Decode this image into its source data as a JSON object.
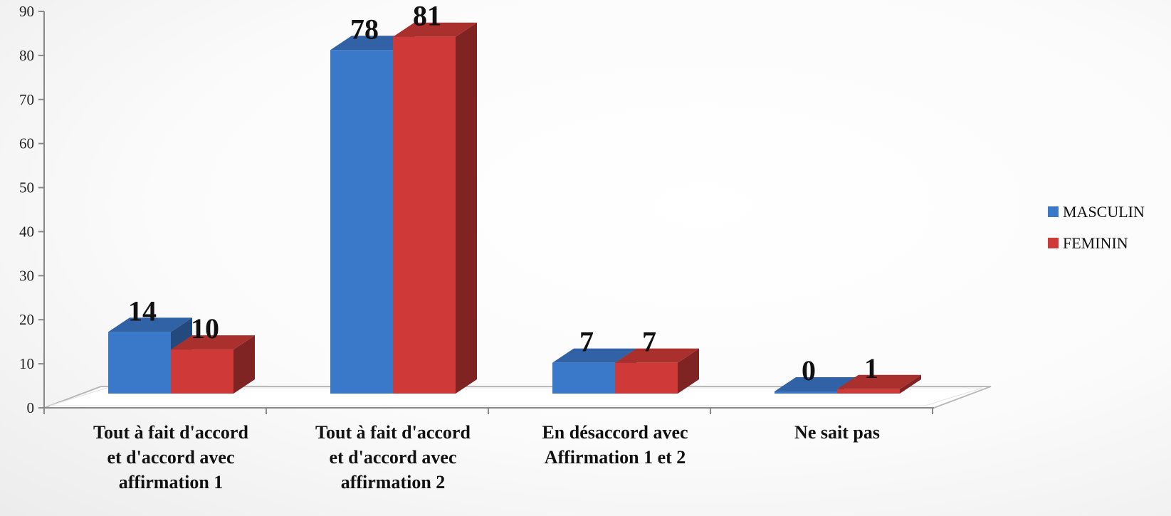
{
  "chart_data": {
    "type": "bar",
    "title": "",
    "xlabel": "",
    "ylabel": "",
    "ylim": [
      0,
      90
    ],
    "yticks": [
      0,
      10,
      20,
      30,
      40,
      50,
      60,
      70,
      80,
      90
    ],
    "categories": [
      [
        "Tout à fait d'accord",
        "et d'accord avec",
        "affirmation 1"
      ],
      [
        "Tout à fait d'accord",
        "et d'accord avec",
        "affirmation 2"
      ],
      [
        "En désaccord avec",
        "Affirmation 1 et 2"
      ],
      [
        "Ne sait pas"
      ]
    ],
    "series": [
      {
        "name": "MASCULIN",
        "values": [
          14,
          78,
          7,
          0
        ],
        "color": "#3a78c9"
      },
      {
        "name": "FEMININ",
        "values": [
          10,
          81,
          7,
          1
        ],
        "color": "#cf3a38"
      }
    ],
    "data_labels": true,
    "style": "3d-column",
    "grid": false,
    "legend": "right"
  }
}
